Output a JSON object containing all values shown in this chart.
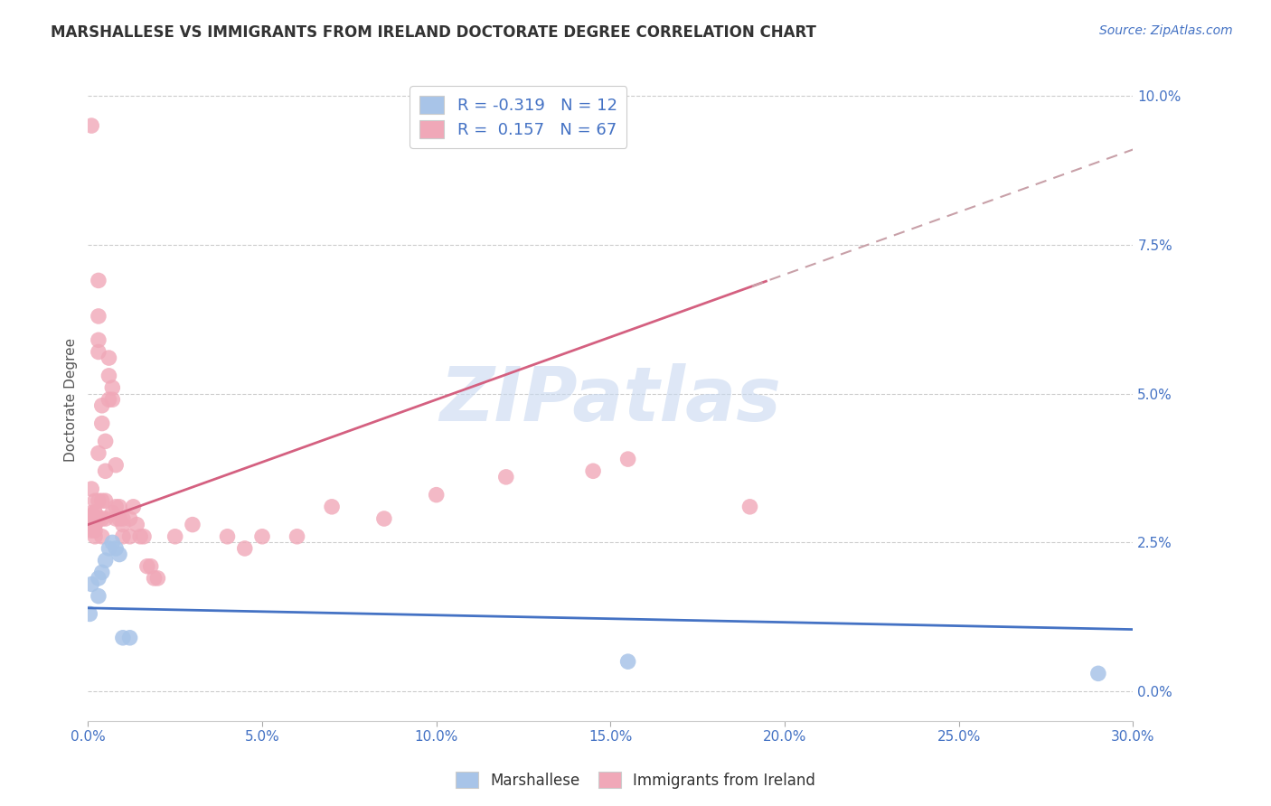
{
  "title": "MARSHALLESE VS IMMIGRANTS FROM IRELAND DOCTORATE DEGREE CORRELATION CHART",
  "source": "Source: ZipAtlas.com",
  "ylabel": "Doctorate Degree",
  "xlim": [
    0.0,
    0.3
  ],
  "ylim": [
    -0.005,
    0.103
  ],
  "xlabel_ticks": [
    0.0,
    0.05,
    0.1,
    0.15,
    0.2,
    0.25,
    0.3
  ],
  "xlabel_labels": [
    "0.0%",
    "5.0%",
    "10.0%",
    "15.0%",
    "20.0%",
    "25.0%",
    "30.0%"
  ],
  "ylabel_ticks": [
    0.0,
    0.025,
    0.05,
    0.075,
    0.1
  ],
  "ylabel_labels": [
    "0.0%",
    "2.5%",
    "5.0%",
    "7.5%",
    "10.0%"
  ],
  "blue_scatter_x": [
    0.0005,
    0.001,
    0.003,
    0.003,
    0.004,
    0.005,
    0.006,
    0.007,
    0.008,
    0.009,
    0.01,
    0.012,
    0.155,
    0.29
  ],
  "blue_scatter_y": [
    0.013,
    0.018,
    0.019,
    0.016,
    0.02,
    0.022,
    0.024,
    0.025,
    0.024,
    0.023,
    0.009,
    0.009,
    0.005,
    0.003
  ],
  "pink_scatter_x": [
    0.001,
    0.001,
    0.001,
    0.001,
    0.001,
    0.001,
    0.002,
    0.002,
    0.002,
    0.002,
    0.002,
    0.002,
    0.002,
    0.002,
    0.003,
    0.003,
    0.003,
    0.003,
    0.003,
    0.003,
    0.003,
    0.004,
    0.004,
    0.004,
    0.004,
    0.004,
    0.005,
    0.005,
    0.005,
    0.005,
    0.006,
    0.006,
    0.006,
    0.007,
    0.007,
    0.007,
    0.008,
    0.008,
    0.008,
    0.009,
    0.009,
    0.01,
    0.01,
    0.01,
    0.012,
    0.012,
    0.013,
    0.014,
    0.015,
    0.016,
    0.017,
    0.018,
    0.019,
    0.02,
    0.025,
    0.03,
    0.04,
    0.045,
    0.05,
    0.06,
    0.07,
    0.085,
    0.1,
    0.12,
    0.145,
    0.155,
    0.19
  ],
  "pink_scatter_y": [
    0.095,
    0.034,
    0.03,
    0.029,
    0.028,
    0.027,
    0.032,
    0.03,
    0.03,
    0.029,
    0.028,
    0.028,
    0.027,
    0.026,
    0.069,
    0.063,
    0.059,
    0.057,
    0.04,
    0.032,
    0.029,
    0.048,
    0.045,
    0.032,
    0.029,
    0.026,
    0.042,
    0.037,
    0.032,
    0.029,
    0.056,
    0.053,
    0.049,
    0.051,
    0.049,
    0.03,
    0.038,
    0.031,
    0.029,
    0.031,
    0.029,
    0.029,
    0.028,
    0.026,
    0.029,
    0.026,
    0.031,
    0.028,
    0.026,
    0.026,
    0.021,
    0.021,
    0.019,
    0.019,
    0.026,
    0.028,
    0.026,
    0.024,
    0.026,
    0.026,
    0.031,
    0.029,
    0.033,
    0.036,
    0.037,
    0.039,
    0.031
  ],
  "blue_color": "#a8c4e8",
  "pink_color": "#f0a8b8",
  "blue_line_color": "#4472c4",
  "pink_line_color": "#d46080",
  "pink_line_dash_color": "#c8a0a8",
  "grid_color": "#cccccc",
  "background_color": "#ffffff",
  "title_fontsize": 12,
  "axis_label_fontsize": 11,
  "tick_fontsize": 11,
  "source_fontsize": 10,
  "watermark_color": "#c8d8f0",
  "watermark_fontsize": 60,
  "blue_line_m": -0.012,
  "blue_line_b": 0.014,
  "pink_line_m": 0.21,
  "pink_line_b": 0.028
}
